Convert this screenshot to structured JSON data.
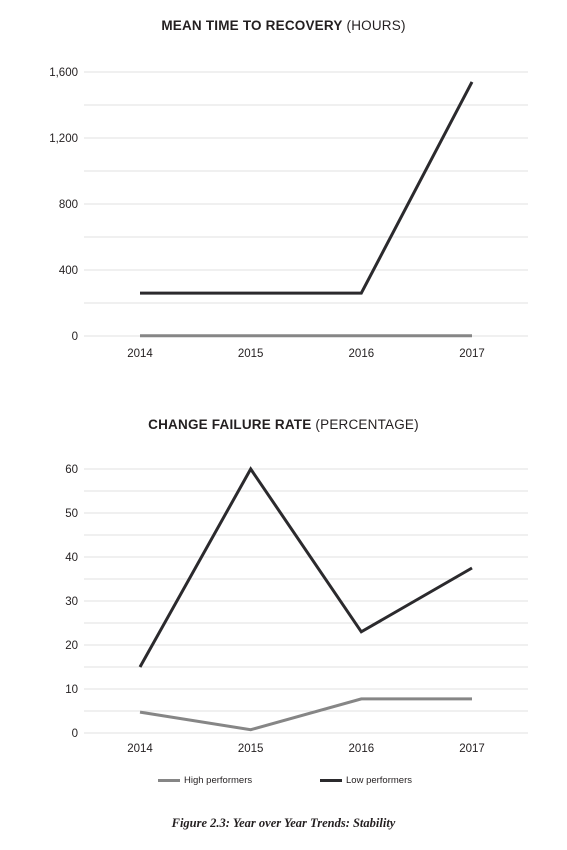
{
  "colors": {
    "high": "#868686",
    "low": "#2b2a2d",
    "grid": "#d6d6d6",
    "text": "#231f20"
  },
  "legend": {
    "high": "High performers",
    "low": "Low performers"
  },
  "caption": "Figure 2.3: Year over Year Trends: Stability",
  "chart_data": [
    {
      "type": "line",
      "title_bold": "MEAN TIME TO RECOVERY",
      "title_rest": "(HOURS)",
      "x": [
        "2014",
        "2015",
        "2016",
        "2017"
      ],
      "yticks": [
        0,
        400,
        800,
        1200,
        1600
      ],
      "ytick_labels": [
        "0",
        "400",
        "800",
        "1,200",
        "1,600"
      ],
      "ylim": [
        0,
        1600
      ],
      "grid": true,
      "series": [
        {
          "name": "High performers",
          "values": [
            1,
            1,
            1,
            1
          ]
        },
        {
          "name": "Low performers",
          "values": [
            260,
            260,
            260,
            1540
          ]
        }
      ]
    },
    {
      "type": "line",
      "title_bold": "CHANGE FAILURE RATE",
      "title_rest": "(PERCENTAGE)",
      "x": [
        "2014",
        "2015",
        "2016",
        "2017"
      ],
      "yticks": [
        0,
        10,
        20,
        30,
        40,
        50,
        60
      ],
      "ytick_labels": [
        "0",
        "10",
        "20",
        "30",
        "40",
        "50",
        "60"
      ],
      "ylim": [
        0,
        60
      ],
      "grid": true,
      "series": [
        {
          "name": "High performers",
          "values": [
            4.75,
            0.75,
            7.75,
            7.75
          ]
        },
        {
          "name": "Low performers",
          "values": [
            15,
            60,
            23,
            37.5
          ]
        }
      ]
    }
  ]
}
